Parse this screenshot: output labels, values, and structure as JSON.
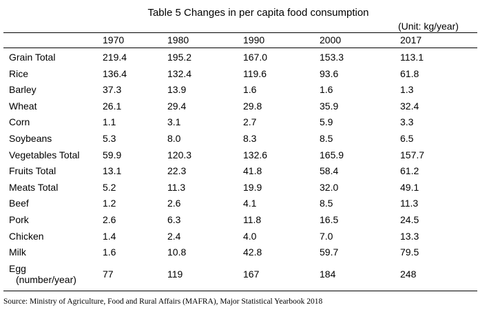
{
  "table": {
    "title": "Table 5 Changes in per capita food consumption",
    "unit": "(Unit: kg/year)",
    "columns": [
      "1970",
      "1980",
      "1990",
      "2000",
      "2017"
    ],
    "rows": [
      {
        "label": "Grain Total",
        "values": [
          "219.4",
          "195.2",
          "167.0",
          "153.3",
          "113.1"
        ]
      },
      {
        "label": "Rice",
        "values": [
          "136.4",
          "132.4",
          "119.6",
          "93.6",
          "61.8"
        ]
      },
      {
        "label": "Barley",
        "values": [
          "37.3",
          "13.9",
          "1.6",
          "1.6",
          "1.3"
        ]
      },
      {
        "label": "Wheat",
        "values": [
          "26.1",
          "29.4",
          "29.8",
          "35.9",
          "32.4"
        ]
      },
      {
        "label": "Corn",
        "values": [
          "1.1",
          "3.1",
          "2.7",
          "5.9",
          "3.3"
        ]
      },
      {
        "label": "Soybeans",
        "values": [
          "5.3",
          "8.0",
          "8.3",
          "8.5",
          "6.5"
        ]
      },
      {
        "label": "Vegetables Total",
        "values": [
          "59.9",
          "120.3",
          "132.6",
          "165.9",
          "157.7"
        ]
      },
      {
        "label": "Fruits Total",
        "values": [
          "13.1",
          "22.3",
          "41.8",
          "58.4",
          "61.2"
        ]
      },
      {
        "label": "Meats Total",
        "values": [
          "5.2",
          "11.3",
          "19.9",
          "32.0",
          "49.1"
        ]
      },
      {
        "label": "Beef",
        "values": [
          "1.2",
          "2.6",
          "4.1",
          "8.5",
          "11.3"
        ]
      },
      {
        "label": "Pork",
        "values": [
          "2.6",
          "6.3",
          "11.8",
          "16.5",
          "24.5"
        ]
      },
      {
        "label": "Chicken",
        "values": [
          "1.4",
          "2.4",
          "4.0",
          "7.0",
          "13.3"
        ]
      },
      {
        "label": "Milk",
        "values": [
          "1.6",
          "10.8",
          "42.8",
          "59.7",
          "79.5"
        ]
      },
      {
        "label": "Egg",
        "sublabel": "(number/year)",
        "values": [
          "77",
          "119",
          "167",
          "184",
          "248"
        ]
      }
    ],
    "source": "Source: Ministry of Agriculture, Food and Rural Affairs (MAFRA), Major Statistical Yearbook 2018"
  }
}
